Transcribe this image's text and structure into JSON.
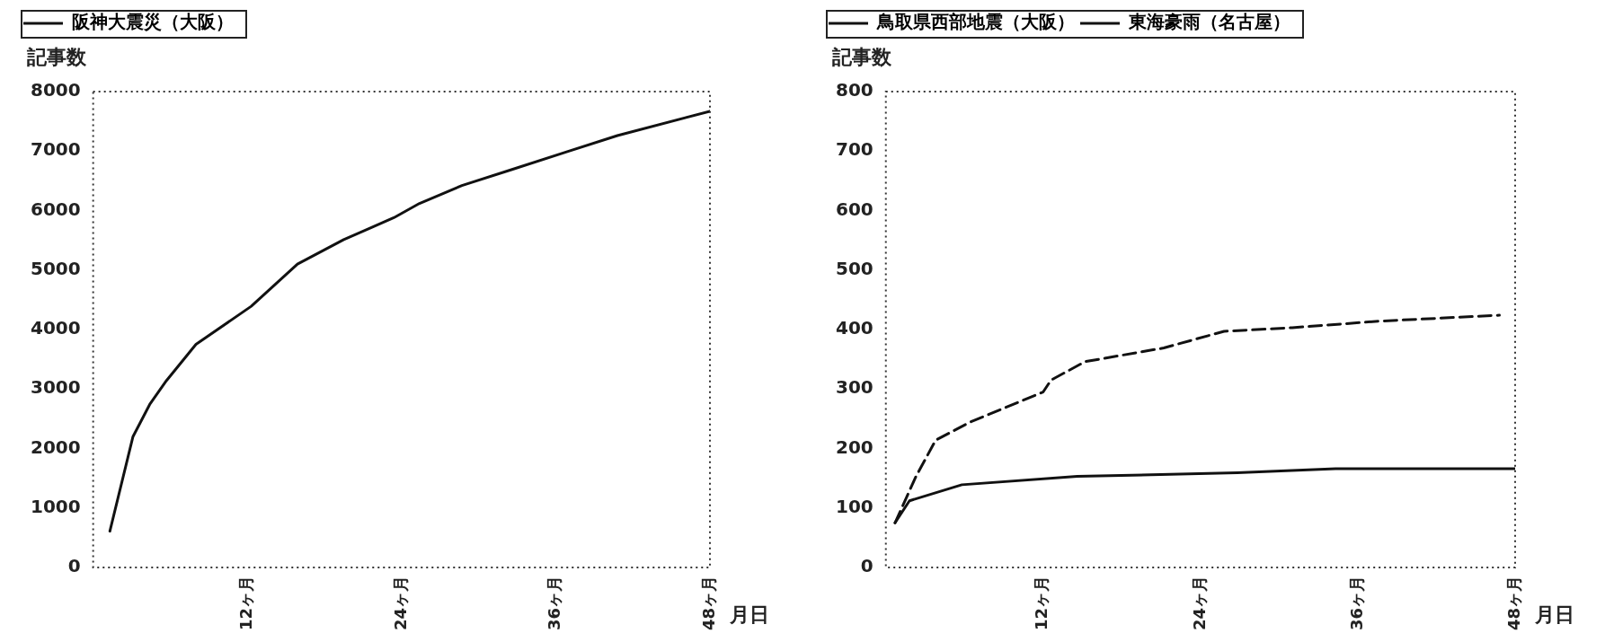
{
  "chart_data": [
    {
      "type": "line",
      "ylabel": "記事数",
      "xlabel": "月日",
      "legend": "top left",
      "marker": "none",
      "grid": false,
      "xlim": [
        0,
        48
      ],
      "xticks": [
        {
          "value": 12,
          "label": "12ヶ月"
        },
        {
          "value": 24,
          "label": "24ヶ月"
        },
        {
          "value": 36,
          "label": "36ヶ月"
        },
        {
          "value": 48,
          "label": "48ヶ月"
        }
      ],
      "ylim": [
        0,
        8000
      ],
      "yticks": [
        0,
        1000,
        2000,
        3000,
        4000,
        5000,
        6000,
        7000,
        8000
      ],
      "series": [
        {
          "name": "阪神大震災（大阪）",
          "color": "#111111",
          "line_style": "solid",
          "x": [
            1.3,
            3.1,
            4.4,
            5.7,
            8.0,
            12.3,
            15.9,
            19.5,
            23.4,
            25.4,
            28.7,
            32.6,
            36.9,
            40.8,
            48
          ],
          "values": [
            610,
            2200,
            2740,
            3140,
            3750,
            4390,
            5100,
            5510,
            5880,
            6120,
            6420,
            6690,
            6990,
            7260,
            7670
          ]
        }
      ]
    },
    {
      "type": "line",
      "ylabel": "記事数",
      "xlabel": "月日",
      "legend": "top left",
      "marker": "none",
      "grid": false,
      "xlim": [
        0,
        48
      ],
      "xticks": [
        {
          "value": 12,
          "label": "12ヶ月"
        },
        {
          "value": 24,
          "label": "24ヶ月"
        },
        {
          "value": 36,
          "label": "36ヶ月"
        },
        {
          "value": 48,
          "label": "48ヶ月"
        }
      ],
      "ylim": [
        0,
        800
      ],
      "yticks": [
        0,
        100,
        200,
        300,
        400,
        500,
        600,
        700,
        800
      ],
      "series": [
        {
          "name": "鳥取県西部地震（大阪）",
          "color": "#111111",
          "line_style": "solid",
          "x": [
            0.7,
            1.8,
            5.8,
            14.6,
            26.8,
            34.3,
            48
          ],
          "values": [
            75,
            112,
            139,
            153,
            159,
            166,
            166
          ]
        },
        {
          "name": "東海豪雨（名古屋）",
          "color": "#111111",
          "line_style": "dashed",
          "x": [
            0.7,
            2.3,
            3.8,
            6.4,
            12.0,
            12.6,
            15.2,
            21.2,
            25.8,
            31.0,
            37.6,
            46.8
          ],
          "values": [
            75,
            153,
            214,
            244,
            295,
            315,
            346,
            369,
            397,
            403,
            414,
            424
          ]
        }
      ]
    }
  ]
}
